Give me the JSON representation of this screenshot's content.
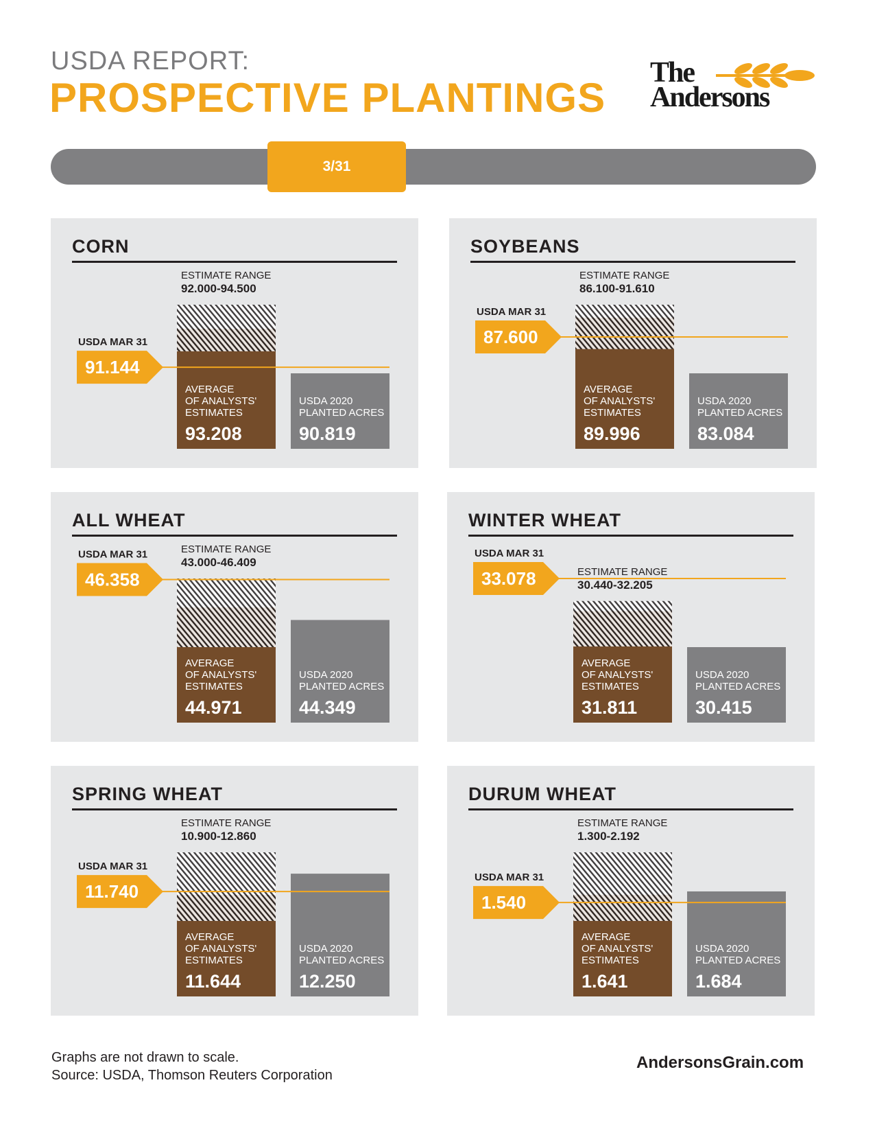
{
  "header": {
    "line1": "USDA REPORT:",
    "line2": "PROSPECTIVE PLANTINGS"
  },
  "logo": {
    "line1": "The",
    "line2": "Andersons"
  },
  "timeline": {
    "date": "3/31"
  },
  "labels": {
    "usda": "USDA MAR 31",
    "range": "ESTIMATE RANGE",
    "avg": [
      "AVERAGE",
      "OF ANALYSTS'",
      "ESTIMATES"
    ],
    "prior": [
      "USDA 2020",
      "PLANTED ACRES"
    ]
  },
  "colors": {
    "orange": "#f2a61d",
    "brown": "#744c2a",
    "gray": "#808082",
    "panel": "#e6e7e8"
  },
  "chart_data": [
    {
      "type": "bar",
      "title": "CORN",
      "categories": [
        "AVERAGE OF ANALYSTS' ESTIMATES",
        "USDA 2020 PLANTED ACRES"
      ],
      "values": [
        93.208,
        90.819
      ],
      "labels": [
        "93.208",
        "90.819"
      ],
      "range": [
        92.0,
        94.5
      ],
      "range_text": "92.000-94.500",
      "usda": 91.144,
      "usda_text": "91.144"
    },
    {
      "type": "bar",
      "title": "SOYBEANS",
      "categories": [
        "AVERAGE OF ANALYSTS' ESTIMATES",
        "USDA 2020 PLANTED ACRES"
      ],
      "values": [
        89.996,
        83.084
      ],
      "labels": [
        "89.996",
        "83.084"
      ],
      "range": [
        86.1,
        91.61
      ],
      "range_text": "86.100-91.610",
      "usda": 87.6,
      "usda_text": "87.600"
    },
    {
      "type": "bar",
      "title": "ALL WHEAT",
      "categories": [
        "AVERAGE OF ANALYSTS' ESTIMATES",
        "USDA 2020 PLANTED ACRES"
      ],
      "values": [
        44.971,
        44.349
      ],
      "labels": [
        "44.971",
        "44.349"
      ],
      "range": [
        43.0,
        46.409
      ],
      "range_text": "43.000-46.409",
      "usda": 46.358,
      "usda_text": "46.358"
    },
    {
      "type": "bar",
      "title": "WINTER WHEAT",
      "categories": [
        "AVERAGE OF ANALYSTS' ESTIMATES",
        "USDA 2020 PLANTED ACRES"
      ],
      "values": [
        31.811,
        30.415
      ],
      "labels": [
        "31.811",
        "30.415"
      ],
      "range": [
        30.44,
        32.205
      ],
      "range_text": "30.440-32.205",
      "usda": 33.078,
      "usda_text": "33.078"
    },
    {
      "type": "bar",
      "title": "SPRING WHEAT",
      "categories": [
        "AVERAGE OF ANALYSTS' ESTIMATES",
        "USDA 2020 PLANTED ACRES"
      ],
      "values": [
        11.644,
        12.25
      ],
      "labels": [
        "11.644",
        "12.250"
      ],
      "range": [
        10.9,
        12.86
      ],
      "range_text": "10.900-12.860",
      "usda": 11.74,
      "usda_text": "11.740"
    },
    {
      "type": "bar",
      "title": "DURUM WHEAT",
      "categories": [
        "AVERAGE OF ANALYSTS' ESTIMATES",
        "USDA 2020 PLANTED ACRES"
      ],
      "values": [
        1.641,
        1.684
      ],
      "labels": [
        "1.641",
        "1.684"
      ],
      "range": [
        1.3,
        2.192
      ],
      "range_text": "1.300-2.192",
      "usda": 1.54,
      "usda_text": "1.540"
    }
  ],
  "footer": {
    "note": "Graphs are not drawn to scale.",
    "source": "Source: USDA, Thomson Reuters Corporation",
    "website": "AndersonsGrain.com"
  }
}
